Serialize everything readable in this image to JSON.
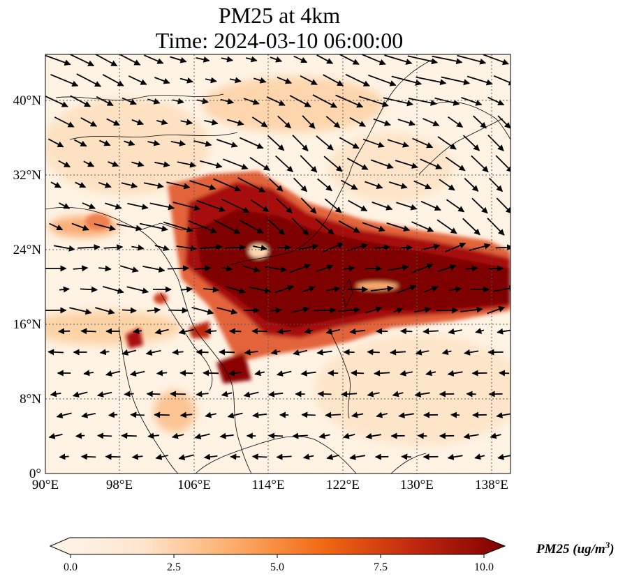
{
  "title_line1": "PM25 at 4km",
  "title_line2": "Time: 2024-03-10 06:00:00",
  "map": {
    "lon_range": [
      90,
      140
    ],
    "lat_range": [
      0,
      45
    ],
    "lon_ticks": [
      "90°E",
      "98°E",
      "106°E",
      "114°E",
      "122°E",
      "130°E",
      "138°E"
    ],
    "lat_ticks": [
      "0°",
      "8°N",
      "16°N",
      "24°N",
      "32°N",
      "40°N"
    ]
  },
  "colorbar": {
    "ticks": [
      "0.0",
      "2.5",
      "5.0",
      "7.5",
      "10.0"
    ],
    "label": "PM25 (ug/m",
    "label_sup": "3",
    "label_end": ")",
    "colors": [
      "#fff5eb",
      "#fdd9b4",
      "#fdae6b",
      "#f3701b",
      "#c73e1d",
      "#7f0000"
    ]
  }
}
